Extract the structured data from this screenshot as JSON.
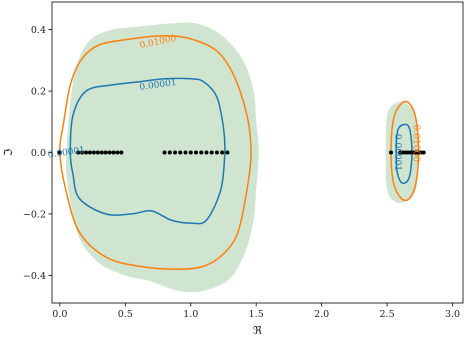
{
  "chart_data": {
    "type": "contour",
    "xlabel": "ℜ",
    "ylabel": "ℑ",
    "xlim": [
      -0.06,
      3.08
    ],
    "ylim": [
      -0.49,
      0.49
    ],
    "x_ticks": [
      0.0,
      0.5,
      1.0,
      1.5,
      2.0,
      2.5,
      3.0
    ],
    "x_tick_labels": [
      "0.0",
      "0.5",
      "1.0",
      "1.5",
      "2.0",
      "2.5",
      "3.0"
    ],
    "y_ticks": [
      0.4,
      0.2,
      0.0,
      -0.2,
      -0.4
    ],
    "y_tick_labels": [
      "0.4",
      "0.2",
      "0.0",
      "−0.2",
      "−0.4"
    ],
    "colors": {
      "fill": "#cfe5cf",
      "contour_outer": "#ff7f0e",
      "contour_inner": "#1f77b4",
      "points": "#000000"
    },
    "filled_regions": [
      [
        [
          0.05,
          0.0
        ],
        [
          0.06,
          0.07
        ],
        [
          0.09,
          0.2
        ],
        [
          0.14,
          0.3
        ],
        [
          0.24,
          0.37
        ],
        [
          0.4,
          0.4
        ],
        [
          0.6,
          0.41
        ],
        [
          0.85,
          0.42
        ],
        [
          1.05,
          0.42
        ],
        [
          1.24,
          0.38
        ],
        [
          1.4,
          0.3
        ],
        [
          1.48,
          0.2
        ],
        [
          1.5,
          0.1
        ],
        [
          1.52,
          0.0
        ],
        [
          1.5,
          -0.12
        ],
        [
          1.48,
          -0.22
        ],
        [
          1.42,
          -0.32
        ],
        [
          1.3,
          -0.41
        ],
        [
          1.1,
          -0.45
        ],
        [
          0.9,
          -0.45
        ],
        [
          0.7,
          -0.42
        ],
        [
          0.5,
          -0.4
        ],
        [
          0.3,
          -0.36
        ],
        [
          0.15,
          -0.28
        ],
        [
          0.08,
          -0.16
        ],
        [
          0.05,
          -0.07
        ]
      ],
      [
        [
          2.49,
          0.0
        ],
        [
          2.5,
          0.12
        ],
        [
          2.56,
          0.16
        ],
        [
          2.64,
          0.16
        ],
        [
          2.72,
          0.12
        ],
        [
          2.74,
          0.0
        ],
        [
          2.72,
          -0.12
        ],
        [
          2.64,
          -0.16
        ],
        [
          2.56,
          -0.16
        ],
        [
          2.5,
          -0.12
        ]
      ]
    ],
    "contours": [
      {
        "level": 0.01,
        "label": "0.01000",
        "color": "#ff7f0e",
        "paths": [
          [
            [
              0.0,
              0.0
            ],
            [
              0.03,
              0.1
            ],
            [
              0.08,
              0.22
            ],
            [
              0.16,
              0.3
            ],
            [
              0.3,
              0.35
            ],
            [
              0.55,
              0.37
            ],
            [
              0.8,
              0.38
            ],
            [
              1.0,
              0.37
            ],
            [
              1.2,
              0.33
            ],
            [
              1.33,
              0.25
            ],
            [
              1.43,
              0.12
            ],
            [
              1.46,
              0.0
            ],
            [
              1.43,
              -0.12
            ],
            [
              1.36,
              -0.26
            ],
            [
              1.25,
              -0.33
            ],
            [
              1.1,
              -0.37
            ],
            [
              0.9,
              -0.38
            ],
            [
              0.6,
              -0.37
            ],
            [
              0.35,
              -0.34
            ],
            [
              0.15,
              -0.26
            ],
            [
              0.05,
              -0.13
            ],
            [
              0.0,
              0.0
            ]
          ],
          [
            [
              2.53,
              0.0
            ],
            [
              2.55,
              0.11
            ],
            [
              2.61,
              0.16
            ],
            [
              2.67,
              0.16
            ],
            [
              2.72,
              0.11
            ],
            [
              2.74,
              0.0
            ],
            [
              2.72,
              -0.1
            ],
            [
              2.67,
              -0.15
            ],
            [
              2.61,
              -0.15
            ],
            [
              2.55,
              -0.1
            ],
            [
              2.53,
              0.0
            ]
          ]
        ],
        "label_positions": [
          [
            0.75,
            0.36
          ],
          [
            2.72,
            0.03
          ]
        ]
      },
      {
        "level": 1e-05,
        "label": "0.00001",
        "color": "#1f77b4",
        "paths": [
          [
            [
              0.08,
              0.0
            ],
            [
              0.1,
              0.12
            ],
            [
              0.2,
              0.2
            ],
            [
              0.4,
              0.22
            ],
            [
              0.6,
              0.23
            ],
            [
              0.8,
              0.24
            ],
            [
              1.0,
              0.24
            ],
            [
              1.1,
              0.23
            ],
            [
              1.2,
              0.18
            ],
            [
              1.25,
              0.08
            ],
            [
              1.26,
              0.0
            ],
            [
              1.23,
              -0.12
            ],
            [
              1.12,
              -0.22
            ],
            [
              1.0,
              -0.23
            ],
            [
              0.85,
              -0.22
            ],
            [
              0.7,
              -0.19
            ],
            [
              0.55,
              -0.2
            ],
            [
              0.35,
              -0.2
            ],
            [
              0.15,
              -0.15
            ],
            [
              0.1,
              -0.07
            ],
            [
              0.08,
              0.0
            ]
          ],
          [
            [
              2.57,
              0.0
            ],
            [
              2.58,
              0.07
            ],
            [
              2.62,
              0.09
            ],
            [
              2.67,
              0.08
            ],
            [
              2.69,
              0.0
            ],
            [
              2.67,
              -0.08
            ],
            [
              2.62,
              -0.1
            ],
            [
              2.58,
              -0.07
            ],
            [
              2.57,
              0.0
            ]
          ]
        ],
        "label_positions": [
          [
            0.75,
            0.22
          ],
          [
            2.58,
            0.0
          ],
          [
            0.05,
            0.0
          ]
        ]
      }
    ],
    "points": [
      [
        0.0,
        0.0
      ],
      [
        0.14,
        0.0
      ],
      [
        0.17,
        0.0
      ],
      [
        0.2,
        0.0
      ],
      [
        0.23,
        0.0
      ],
      [
        0.26,
        0.0
      ],
      [
        0.29,
        0.0
      ],
      [
        0.32,
        0.0
      ],
      [
        0.35,
        0.0
      ],
      [
        0.38,
        0.0
      ],
      [
        0.41,
        0.0
      ],
      [
        0.44,
        0.0
      ],
      [
        0.47,
        0.0
      ],
      [
        0.8,
        0.0
      ],
      [
        0.84,
        0.0
      ],
      [
        0.88,
        0.0
      ],
      [
        0.92,
        0.0
      ],
      [
        0.96,
        0.0
      ],
      [
        1.0,
        0.0
      ],
      [
        1.04,
        0.0
      ],
      [
        1.08,
        0.0
      ],
      [
        1.12,
        0.0
      ],
      [
        1.16,
        0.0
      ],
      [
        1.2,
        0.0
      ],
      [
        1.24,
        0.0
      ],
      [
        1.28,
        0.0
      ],
      [
        2.53,
        0.0
      ],
      [
        2.6,
        0.0
      ],
      [
        2.62,
        0.0
      ],
      [
        2.64,
        0.0
      ],
      [
        2.66,
        0.0
      ],
      [
        2.68,
        0.0
      ],
      [
        2.7,
        0.0
      ],
      [
        2.72,
        0.0
      ],
      [
        2.74,
        0.0
      ],
      [
        2.76,
        0.0
      ],
      [
        2.78,
        0.0
      ]
    ]
  }
}
